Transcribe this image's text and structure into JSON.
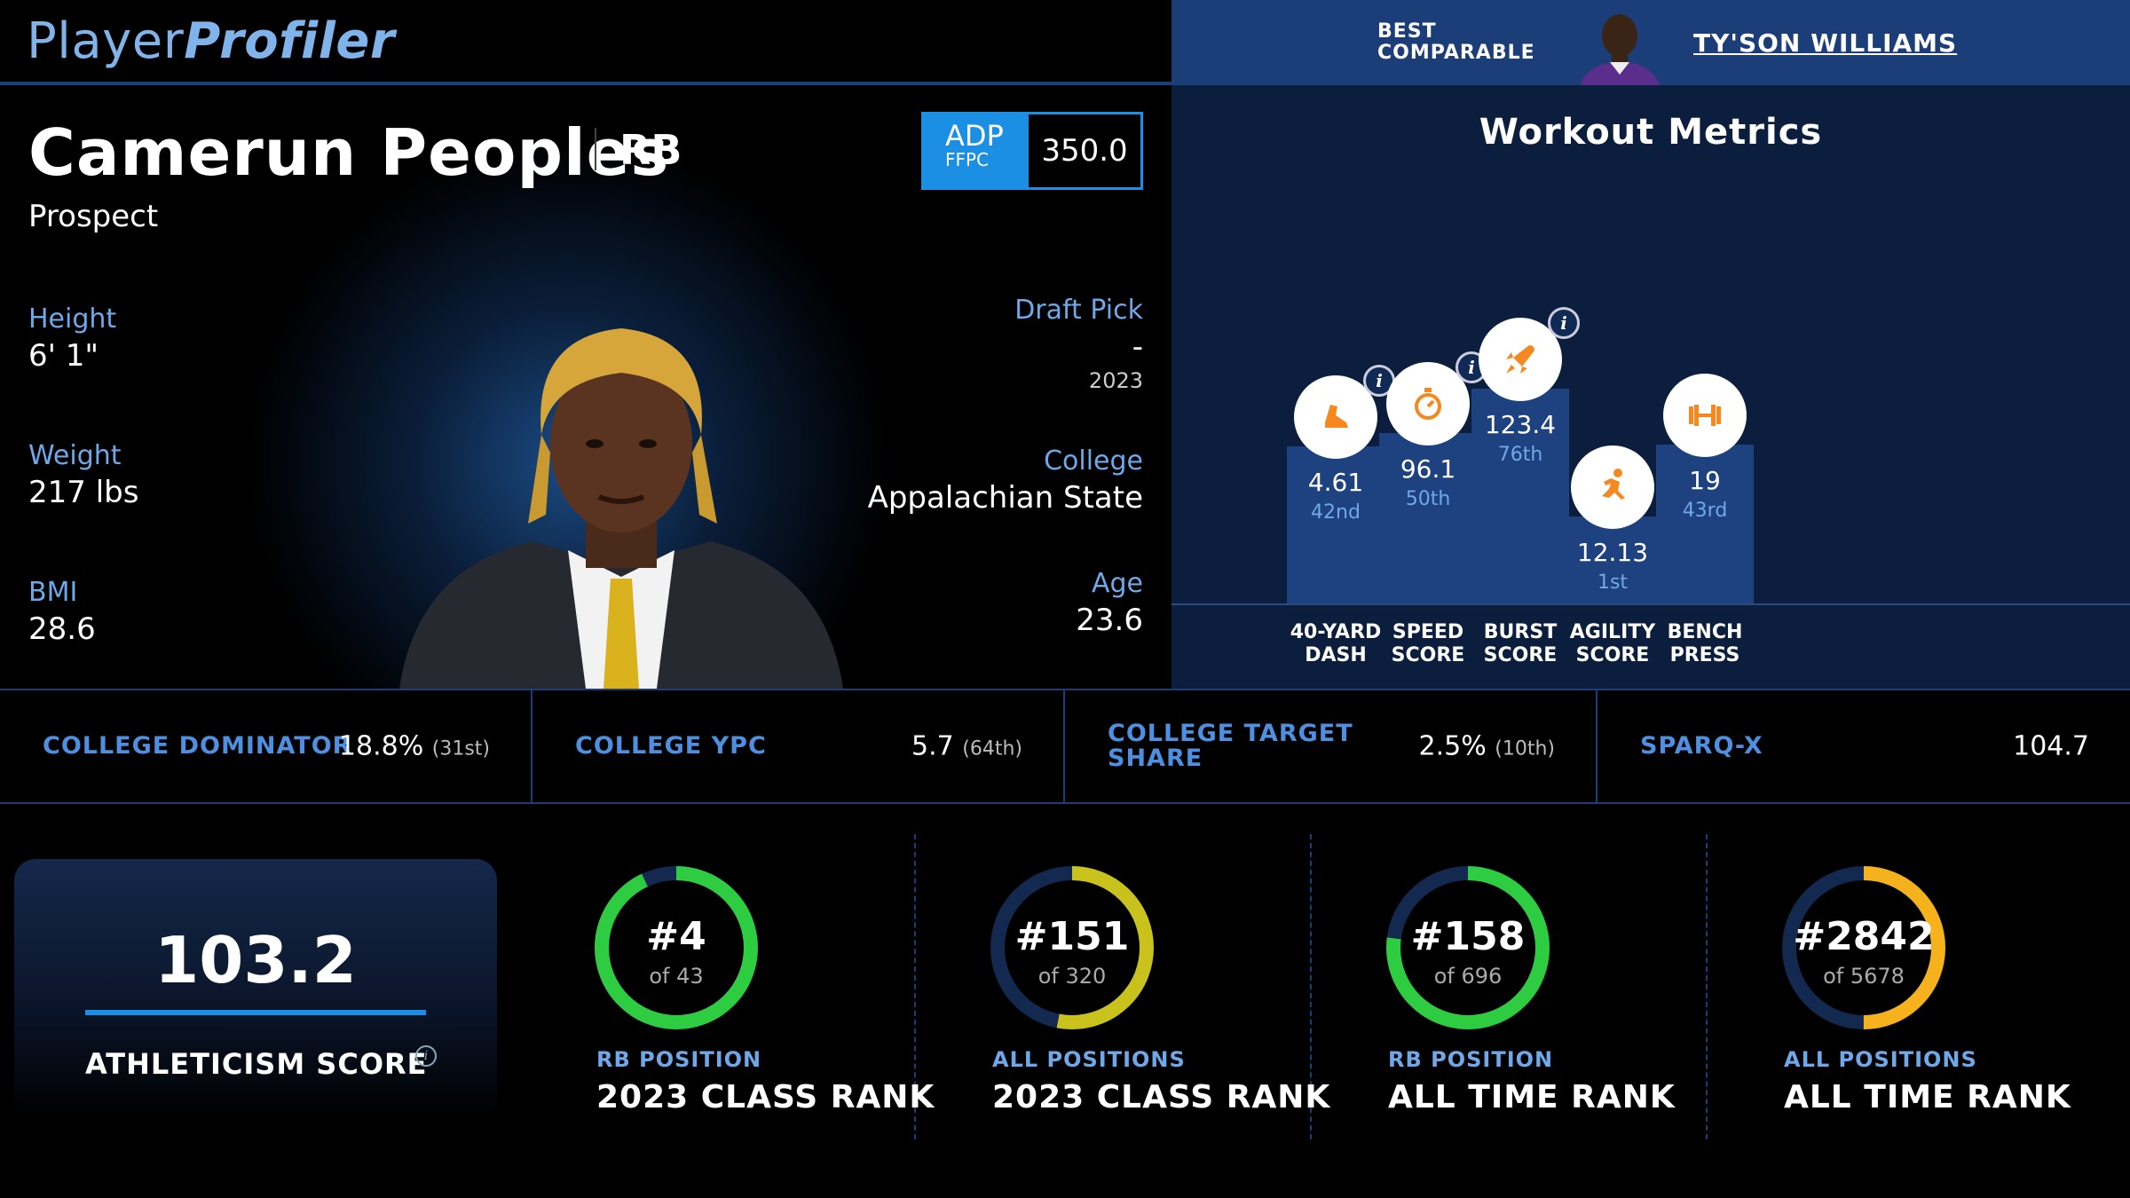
{
  "header": {
    "logo_part1": "Player",
    "logo_part2": "Profiler",
    "best_comparable_label_line1": "BEST",
    "best_comparable_label_line2": "COMPARABLE",
    "best_comparable_name": "TY'SON WILLIAMS"
  },
  "player": {
    "name": "Camerun Peoples",
    "position": "RB",
    "status": "Prospect",
    "adp_label": "ADP",
    "adp_source": "FFPC",
    "adp_value": "350.0",
    "height_label": "Height",
    "height": "6' 1\"",
    "weight_label": "Weight",
    "weight": "217 lbs",
    "bmi_label": "BMI",
    "bmi": "28.6",
    "draft_pick_label": "Draft Pick",
    "draft_pick": "-",
    "draft_year": "2023",
    "college_label": "College",
    "college": "Appalachian State",
    "age_label": "Age",
    "age": "23.6"
  },
  "workout": {
    "title": "Workout Metrics",
    "metrics": [
      {
        "label_line1": "40-YARD",
        "label_line2": "DASH",
        "value": "4.61",
        "rank": "42nd",
        "percentile": 42,
        "icon": "shoe-icon",
        "has_info": true
      },
      {
        "label_line1": "SPEED",
        "label_line2": "SCORE",
        "value": "96.1",
        "rank": "50th",
        "percentile": 50,
        "icon": "stopwatch-icon",
        "has_info": true
      },
      {
        "label_line1": "BURST",
        "label_line2": "SCORE",
        "value": "123.4",
        "rank": "76th",
        "percentile": 76,
        "icon": "rocket-icon",
        "has_info": true
      },
      {
        "label_line1": "AGILITY",
        "label_line2": "SCORE",
        "value": "12.13",
        "rank": "1st",
        "percentile": 1,
        "icon": "runner-icon",
        "has_info": false
      },
      {
        "label_line1": "BENCH",
        "label_line2": "PRESS",
        "value": "19",
        "rank": "43rd",
        "percentile": 43,
        "icon": "barbell-icon",
        "has_info": false
      }
    ],
    "accent_color": "#f5891f"
  },
  "college_stats": [
    {
      "label_line1": "COLLEGE DOMINATOR",
      "label_line2": "",
      "value": "18.8%",
      "rank": "(31st)"
    },
    {
      "label_line1": "COLLEGE YPC",
      "label_line2": "",
      "value": "5.7",
      "rank": "(64th)"
    },
    {
      "label_line1": "COLLEGE TARGET",
      "label_line2": "SHARE",
      "value": "2.5%",
      "rank": "(10th)"
    },
    {
      "label_line1": "SPARQ-X",
      "label_line2": "",
      "value": "104.7",
      "rank": ""
    }
  ],
  "athleticism": {
    "value": "103.2",
    "label": "ATHLETICISM SCORE"
  },
  "ranks": [
    {
      "rank": "#4",
      "of": "of 43",
      "fraction": 0.93,
      "color": "#2ecc40",
      "sub": "RB POSITION",
      "title": "2023 CLASS RANK"
    },
    {
      "rank": "#151",
      "of": "of 320",
      "fraction": 0.53,
      "color": "#c9c21c",
      "sub": "ALL POSITIONS",
      "title": "2023 CLASS RANK"
    },
    {
      "rank": "#158",
      "of": "of 696",
      "fraction": 0.77,
      "color": "#2ecc40",
      "sub": "RB POSITION",
      "title": "ALL TIME RANK"
    },
    {
      "rank": "#2842",
      "of": "of 5678",
      "fraction": 0.5,
      "color": "#f5b21c",
      "sub": "ALL POSITIONS",
      "title": "ALL TIME RANK"
    }
  ]
}
